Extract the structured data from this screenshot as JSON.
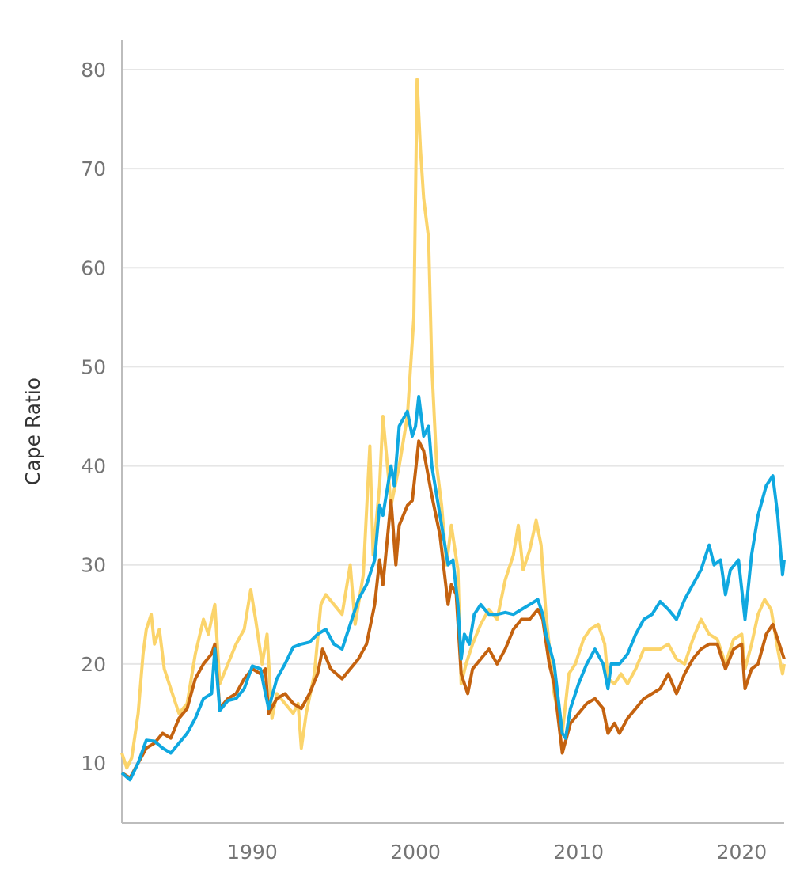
{
  "chart_data": {
    "type": "line",
    "title": "",
    "xlabel": "",
    "ylabel": "Cape Ratio",
    "xlim": [
      1982,
      2022.6
    ],
    "ylim": [
      4,
      83
    ],
    "grid": true,
    "legend": "none",
    "x_ticks": [
      1990,
      2000,
      2010,
      2020
    ],
    "x_tick_labels": [
      "1990",
      "2000",
      "2010",
      "2020"
    ],
    "y_ticks": [
      10,
      20,
      30,
      40,
      50,
      60,
      70,
      80
    ],
    "y_tick_labels": [
      "10",
      "20",
      "30",
      "40",
      "50",
      "60",
      "70",
      "80"
    ],
    "series": [
      {
        "key": "yellow",
        "color": "#FBD46B",
        "points": [
          [
            1982,
            11
          ],
          [
            1982.3,
            9.5
          ],
          [
            1982.6,
            10.5
          ],
          [
            1983,
            15
          ],
          [
            1983.3,
            21
          ],
          [
            1983.5,
            23.5
          ],
          [
            1983.8,
            25
          ],
          [
            1984,
            22
          ],
          [
            1984.3,
            23.5
          ],
          [
            1984.6,
            19.5
          ],
          [
            1985,
            17.5
          ],
          [
            1985.5,
            15
          ],
          [
            1986,
            16
          ],
          [
            1986.5,
            21
          ],
          [
            1987,
            24.5
          ],
          [
            1987.3,
            23
          ],
          [
            1987.7,
            26
          ],
          [
            1988,
            18
          ],
          [
            1988.5,
            20
          ],
          [
            1989,
            22
          ],
          [
            1989.5,
            23.5
          ],
          [
            1989.9,
            27.5
          ],
          [
            1990.2,
            24.5
          ],
          [
            1990.6,
            20
          ],
          [
            1990.9,
            23
          ],
          [
            1991.2,
            14.5
          ],
          [
            1991.5,
            17
          ],
          [
            1992,
            16
          ],
          [
            1992.5,
            15
          ],
          [
            1992.8,
            16
          ],
          [
            1993,
            11.5
          ],
          [
            1993.3,
            15
          ],
          [
            1993.8,
            19
          ],
          [
            1994.2,
            26
          ],
          [
            1994.5,
            27
          ],
          [
            1995,
            26
          ],
          [
            1995.5,
            25
          ],
          [
            1996,
            30
          ],
          [
            1996.3,
            24
          ],
          [
            1996.8,
            29
          ],
          [
            1997.2,
            42
          ],
          [
            1997.4,
            31
          ],
          [
            1997.8,
            38
          ],
          [
            1998,
            45
          ],
          [
            1998.5,
            36
          ],
          [
            1999,
            40
          ],
          [
            1999.5,
            45
          ],
          [
            1999.9,
            55
          ],
          [
            2000.1,
            79
          ],
          [
            2000.3,
            72
          ],
          [
            2000.5,
            67
          ],
          [
            2000.8,
            63
          ],
          [
            2001,
            50
          ],
          [
            2001.3,
            40
          ],
          [
            2001.6,
            36
          ],
          [
            2001.9,
            30
          ],
          [
            2002.2,
            34
          ],
          [
            2002.6,
            29.5
          ],
          [
            2002.8,
            18
          ],
          [
            2003.1,
            20
          ],
          [
            2003.5,
            22
          ],
          [
            2004,
            24
          ],
          [
            2004.5,
            25.5
          ],
          [
            2005,
            24.5
          ],
          [
            2005.5,
            28.5
          ],
          [
            2006,
            31
          ],
          [
            2006.3,
            34
          ],
          [
            2006.6,
            29.5
          ],
          [
            2007,
            31.5
          ],
          [
            2007.4,
            34.5
          ],
          [
            2007.7,
            32
          ],
          [
            2008,
            25
          ],
          [
            2008.5,
            17
          ],
          [
            2009,
            13
          ],
          [
            2009.4,
            19
          ],
          [
            2009.8,
            20
          ],
          [
            2010.3,
            22.5
          ],
          [
            2010.7,
            23.5
          ],
          [
            2011.2,
            24
          ],
          [
            2011.6,
            22
          ],
          [
            2011.8,
            18.5
          ],
          [
            2012.2,
            18
          ],
          [
            2012.6,
            19
          ],
          [
            2013,
            18
          ],
          [
            2013.5,
            19.5
          ],
          [
            2014,
            21.5
          ],
          [
            2014.5,
            21.5
          ],
          [
            2015,
            21.5
          ],
          [
            2015.5,
            22
          ],
          [
            2016,
            20.5
          ],
          [
            2016.5,
            20
          ],
          [
            2017,
            22.5
          ],
          [
            2017.5,
            24.5
          ],
          [
            2018,
            23
          ],
          [
            2018.5,
            22.5
          ],
          [
            2019,
            20
          ],
          [
            2019.5,
            22.5
          ],
          [
            2020,
            23
          ],
          [
            2020.2,
            19.5
          ],
          [
            2020.6,
            22
          ],
          [
            2021,
            25
          ],
          [
            2021.4,
            26.5
          ],
          [
            2021.8,
            25.5
          ],
          [
            2022.2,
            21.5
          ],
          [
            2022.5,
            19
          ],
          [
            2022.6,
            20
          ]
        ]
      },
      {
        "key": "brown",
        "color": "#C4620F",
        "points": [
          [
            1982,
            9
          ],
          [
            1982.5,
            8.5
          ],
          [
            1983,
            10
          ],
          [
            1983.5,
            11.5
          ],
          [
            1984,
            12
          ],
          [
            1984.5,
            13
          ],
          [
            1985,
            12.5
          ],
          [
            1985.5,
            14.5
          ],
          [
            1986,
            15.5
          ],
          [
            1986.5,
            18.5
          ],
          [
            1987,
            20
          ],
          [
            1987.5,
            21
          ],
          [
            1987.7,
            22
          ],
          [
            1988,
            15.5
          ],
          [
            1988.5,
            16.5
          ],
          [
            1989,
            17
          ],
          [
            1989.5,
            18.5
          ],
          [
            1990,
            19.5
          ],
          [
            1990.5,
            19
          ],
          [
            1990.8,
            19.5
          ],
          [
            1991,
            15
          ],
          [
            1991.5,
            16.5
          ],
          [
            1992,
            17
          ],
          [
            1992.5,
            16
          ],
          [
            1993,
            15.5
          ],
          [
            1993.5,
            17
          ],
          [
            1994,
            19
          ],
          [
            1994.3,
            21.5
          ],
          [
            1994.8,
            19.5
          ],
          [
            1995.5,
            18.5
          ],
          [
            1996,
            19.5
          ],
          [
            1996.5,
            20.5
          ],
          [
            1997,
            22
          ],
          [
            1997.5,
            26
          ],
          [
            1997.8,
            30.5
          ],
          [
            1998,
            28
          ],
          [
            1998.5,
            36.5
          ],
          [
            1998.8,
            30
          ],
          [
            1999,
            34
          ],
          [
            1999.5,
            36
          ],
          [
            1999.8,
            36.5
          ],
          [
            2000.2,
            42.5
          ],
          [
            2000.5,
            41.5
          ],
          [
            2001,
            37
          ],
          [
            2001.5,
            33
          ],
          [
            2002,
            26
          ],
          [
            2002.2,
            28
          ],
          [
            2002.5,
            27
          ],
          [
            2002.8,
            19
          ],
          [
            2003.2,
            17
          ],
          [
            2003.5,
            19.5
          ],
          [
            2004,
            20.5
          ],
          [
            2004.5,
            21.5
          ],
          [
            2005,
            20
          ],
          [
            2005.5,
            21.5
          ],
          [
            2006,
            23.5
          ],
          [
            2006.5,
            24.5
          ],
          [
            2007,
            24.5
          ],
          [
            2007.5,
            25.5
          ],
          [
            2007.8,
            24.5
          ],
          [
            2008.2,
            20
          ],
          [
            2008.5,
            18
          ],
          [
            2009,
            11
          ],
          [
            2009.5,
            14
          ],
          [
            2010,
            15
          ],
          [
            2010.5,
            16
          ],
          [
            2011,
            16.5
          ],
          [
            2011.5,
            15.5
          ],
          [
            2011.8,
            13
          ],
          [
            2012.2,
            14
          ],
          [
            2012.5,
            13
          ],
          [
            2013,
            14.5
          ],
          [
            2013.5,
            15.5
          ],
          [
            2014,
            16.5
          ],
          [
            2014.5,
            17
          ],
          [
            2015,
            17.5
          ],
          [
            2015.5,
            19
          ],
          [
            2016,
            17
          ],
          [
            2016.5,
            19
          ],
          [
            2017,
            20.5
          ],
          [
            2017.5,
            21.5
          ],
          [
            2018,
            22
          ],
          [
            2018.5,
            22
          ],
          [
            2019,
            19.5
          ],
          [
            2019.5,
            21.5
          ],
          [
            2020,
            22
          ],
          [
            2020.2,
            17.5
          ],
          [
            2020.6,
            19.5
          ],
          [
            2021,
            20
          ],
          [
            2021.5,
            23
          ],
          [
            2021.9,
            24
          ],
          [
            2022.2,
            22.5
          ],
          [
            2022.6,
            20.5
          ]
        ]
      },
      {
        "key": "blue",
        "color": "#0FA8E0",
        "points": [
          [
            1982,
            9
          ],
          [
            1982.5,
            8.3
          ],
          [
            1983,
            10
          ],
          [
            1983.5,
            12.3
          ],
          [
            1984,
            12.2
          ],
          [
            1984.5,
            11.5
          ],
          [
            1985,
            11
          ],
          [
            1985.5,
            12
          ],
          [
            1986,
            13
          ],
          [
            1986.5,
            14.5
          ],
          [
            1987,
            16.5
          ],
          [
            1987.5,
            17
          ],
          [
            1987.7,
            21.5
          ],
          [
            1988,
            15.3
          ],
          [
            1988.5,
            16.3
          ],
          [
            1989,
            16.5
          ],
          [
            1989.5,
            17.5
          ],
          [
            1990,
            19.8
          ],
          [
            1990.5,
            19.5
          ],
          [
            1990.8,
            17
          ],
          [
            1991,
            15.5
          ],
          [
            1991.5,
            18.5
          ],
          [
            1992,
            20
          ],
          [
            1992.5,
            21.7
          ],
          [
            1993,
            22
          ],
          [
            1993.5,
            22.2
          ],
          [
            1994,
            23
          ],
          [
            1994.5,
            23.5
          ],
          [
            1995,
            22
          ],
          [
            1995.5,
            21.5
          ],
          [
            1996,
            24
          ],
          [
            1996.5,
            26.5
          ],
          [
            1997,
            28
          ],
          [
            1997.5,
            30.5
          ],
          [
            1997.8,
            36
          ],
          [
            1998,
            35
          ],
          [
            1998.5,
            40
          ],
          [
            1998.7,
            38
          ],
          [
            1999,
            44
          ],
          [
            1999.5,
            45.5
          ],
          [
            1999.8,
            43
          ],
          [
            2000,
            44
          ],
          [
            2000.2,
            47
          ],
          [
            2000.5,
            43
          ],
          [
            2000.8,
            44
          ],
          [
            2001,
            40
          ],
          [
            2001.5,
            35
          ],
          [
            2001.8,
            32
          ],
          [
            2002,
            30
          ],
          [
            2002.3,
            30.5
          ],
          [
            2002.6,
            26
          ],
          [
            2002.8,
            20.5
          ],
          [
            2003,
            23
          ],
          [
            2003.3,
            22
          ],
          [
            2003.6,
            25
          ],
          [
            2004,
            26
          ],
          [
            2004.5,
            25
          ],
          [
            2005,
            25
          ],
          [
            2005.5,
            25.2
          ],
          [
            2006,
            25
          ],
          [
            2006.5,
            25.5
          ],
          [
            2007,
            26
          ],
          [
            2007.5,
            26.5
          ],
          [
            2007.8,
            25
          ],
          [
            2008,
            23
          ],
          [
            2008.5,
            20
          ],
          [
            2009,
            13
          ],
          [
            2009.2,
            12.5
          ],
          [
            2009.5,
            15.5
          ],
          [
            2010,
            18
          ],
          [
            2010.5,
            20
          ],
          [
            2011,
            21.5
          ],
          [
            2011.5,
            20
          ],
          [
            2011.8,
            17.5
          ],
          [
            2012,
            20
          ],
          [
            2012.5,
            20
          ],
          [
            2013,
            21
          ],
          [
            2013.5,
            23
          ],
          [
            2014,
            24.5
          ],
          [
            2014.5,
            25
          ],
          [
            2015,
            26.3
          ],
          [
            2015.5,
            25.5
          ],
          [
            2016,
            24.5
          ],
          [
            2016.5,
            26.5
          ],
          [
            2017,
            28
          ],
          [
            2017.5,
            29.5
          ],
          [
            2018,
            32
          ],
          [
            2018.3,
            30
          ],
          [
            2018.7,
            30.5
          ],
          [
            2019,
            27
          ],
          [
            2019.3,
            29.5
          ],
          [
            2019.8,
            30.5
          ],
          [
            2020.2,
            24.5
          ],
          [
            2020.6,
            31
          ],
          [
            2021,
            35
          ],
          [
            2021.5,
            38
          ],
          [
            2021.9,
            39
          ],
          [
            2022.2,
            35
          ],
          [
            2022.5,
            29
          ],
          [
            2022.6,
            30.5
          ]
        ]
      }
    ]
  }
}
